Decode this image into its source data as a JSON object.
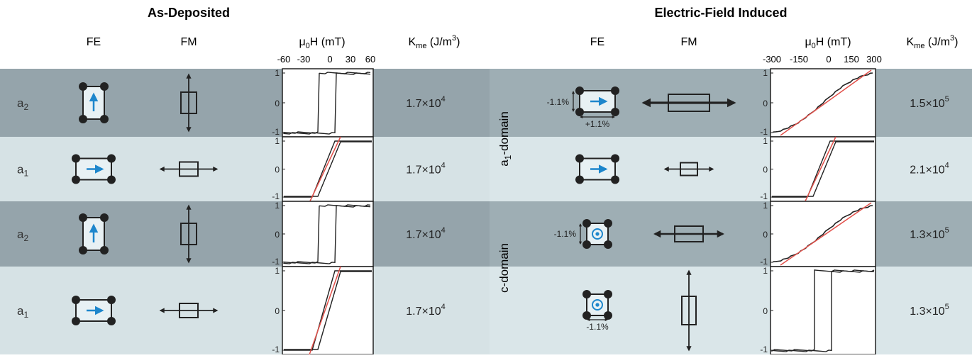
{
  "titles": {
    "left": "As-Deposited",
    "right": "Electric-Field Induced"
  },
  "headers": {
    "left": {
      "fe": "FE",
      "fm": "FM",
      "field_main": "μ",
      "field_sub": "0",
      "field_rest": "H (mT)",
      "k_main": "K",
      "k_sub": "me",
      "k_rest": " (J/m",
      "k_sup": "3",
      "k_close": ")"
    },
    "right": {
      "fe": "FE",
      "fm": "FM",
      "field_main": "μ",
      "field_sub": "0",
      "field_rest": "H (mT)",
      "k_main": "K",
      "k_sub": "me",
      "k_rest": " (J/m",
      "k_sup": "3",
      "k_close": ")"
    }
  },
  "axis_ticks": {
    "left_x": [
      "-60",
      "-30",
      "0",
      "30",
      "60"
    ],
    "right_x": [
      "-300",
      "-150",
      "0",
      "150",
      "300"
    ],
    "y": [
      "1",
      "0",
      "-1"
    ]
  },
  "group_labels": {
    "a1_domain_main": "a",
    "a1_domain_sub": "1",
    "a1_domain_rest": "-domain",
    "c_domain": "c-domain"
  },
  "strain": {
    "r1_vertical": "-1.1%",
    "r1_horizontal": "+1.1%",
    "r3_vertical": "-1.1%",
    "r4_horizontal": "-1.1%"
  },
  "rows_left": [
    {
      "label": "a",
      "label_sub": "2",
      "fe": "vertical-arrow",
      "fm": "vertical",
      "loop": "square",
      "k_mant": "1.7×10",
      "k_exp": "4"
    },
    {
      "label": "a",
      "label_sub": "1",
      "fe": "horizontal-arrow",
      "fm": "horizontal",
      "loop": "slanted",
      "k_mant": "1.7×10",
      "k_exp": "4"
    },
    {
      "label": "a",
      "label_sub": "2",
      "fe": "vertical-arrow",
      "fm": "vertical",
      "loop": "square",
      "k_mant": "1.7×10",
      "k_exp": "4"
    },
    {
      "label": "a",
      "label_sub": "1",
      "fe": "horizontal-arrow",
      "fm": "horizontal",
      "loop": "slanted",
      "k_mant": "1.7×10",
      "k_exp": "4"
    }
  ],
  "rows_right": [
    {
      "fe": "horizontal-arrow-strained",
      "fm": "horizontal-large",
      "loop": "hard-axis",
      "k_mant": "1.5×10",
      "k_exp": "5"
    },
    {
      "fe": "horizontal-arrow",
      "fm": "horizontal",
      "loop": "slanted",
      "k_mant": "2.1×10",
      "k_exp": "4"
    },
    {
      "fe": "out-of-plane-strained",
      "fm": "horizontal-medium",
      "loop": "hard-axis",
      "k_mant": "1.3×10",
      "k_exp": "5"
    },
    {
      "fe": "out-of-plane-strained",
      "fm": "vertical-large",
      "loop": "square",
      "k_mant": "1.3×10",
      "k_exp": "5"
    }
  ],
  "colors": {
    "row_dark": "#95a4ab",
    "row_light": "#d6e2e5",
    "row_dark_right": "#9eaeb4",
    "row_light_right": "#dae6e9",
    "arrow_blue": "#1d86cc",
    "fit_red": "#e2504a"
  }
}
